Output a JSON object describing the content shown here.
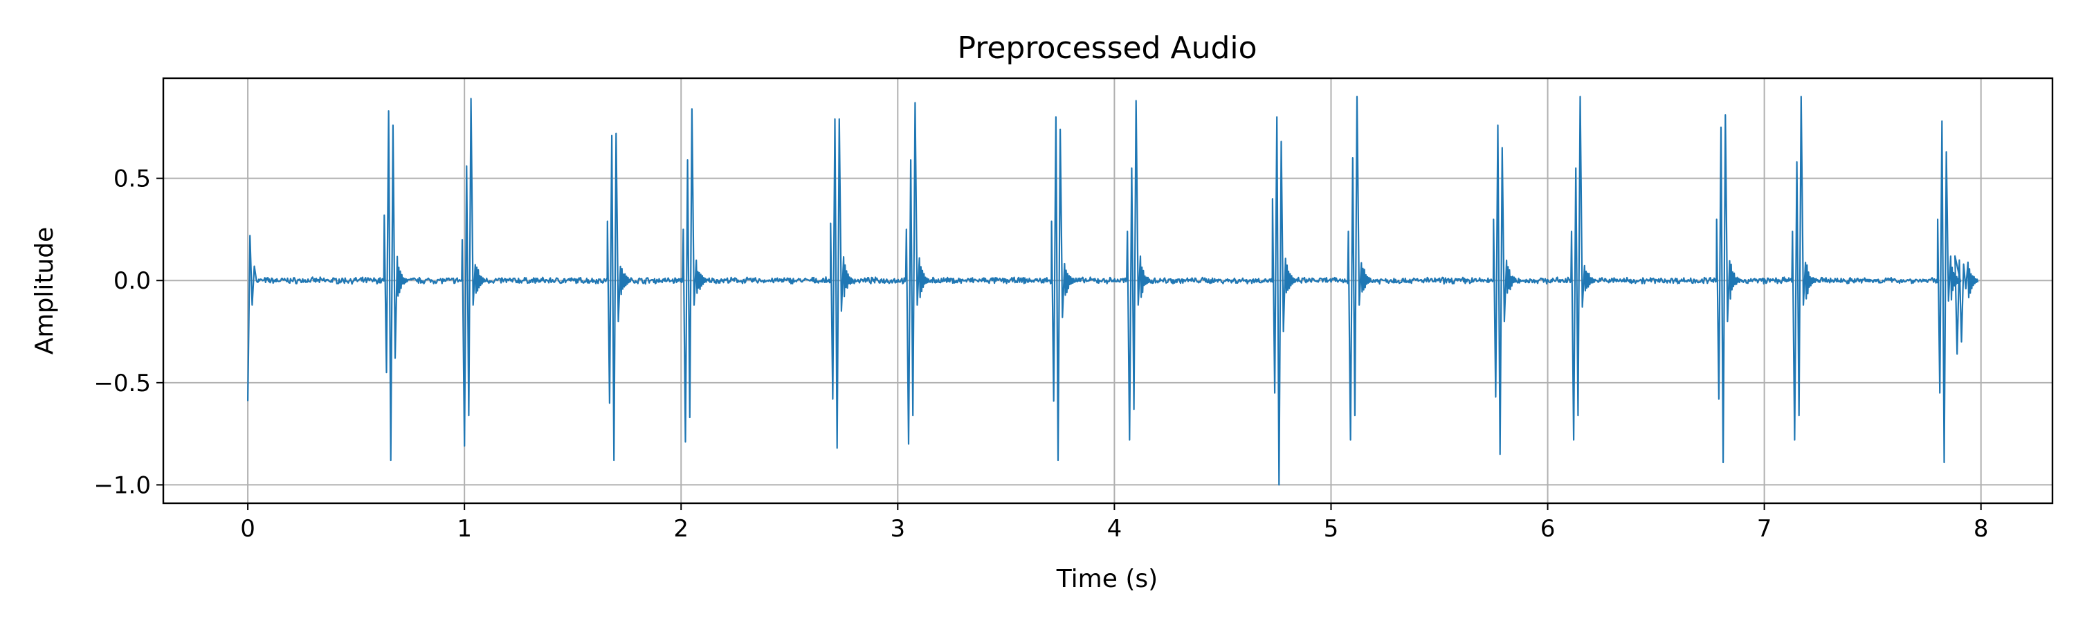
{
  "chart_data": {
    "type": "line",
    "title": "Preprocessed Audio",
    "xlabel": "Time (s)",
    "ylabel": "Amplitude",
    "xlim": [
      -0.39,
      8.33
    ],
    "ylim": [
      -1.09,
      0.99
    ],
    "grid": true,
    "xticks": [
      0,
      1,
      2,
      3,
      4,
      5,
      6,
      7,
      8
    ],
    "xtick_labels": [
      "0",
      "1",
      "2",
      "3",
      "4",
      "5",
      "6",
      "7",
      "8"
    ],
    "yticks": [
      0.5,
      0.0,
      -0.5,
      -1.0
    ],
    "ytick_labels": [
      "0.5",
      "0.0",
      "−0.5",
      "−1.0"
    ],
    "series": [
      {
        "color": "#1f77b4",
        "duration": 7.94,
        "noise_amplitude": 0.012,
        "x": [
          0.0,
          0.01,
          0.02,
          0.03,
          0.04
        ],
        "y": [
          -0.59,
          0.22,
          -0.12,
          0.07,
          0.0
        ],
        "events": [
          {
            "t": 0.63,
            "peaks": [
              0.32,
              -0.45,
              0.83,
              -0.88,
              0.76,
              -0.38
            ]
          },
          {
            "t": 0.99,
            "peaks": [
              0.2,
              -0.81,
              0.56,
              -0.66,
              0.89,
              -0.12
            ]
          },
          {
            "t": 1.66,
            "peaks": [
              0.29,
              -0.6,
              0.71,
              -0.88,
              0.72,
              -0.2
            ]
          },
          {
            "t": 2.01,
            "peaks": [
              0.25,
              -0.79,
              0.59,
              -0.67,
              0.84,
              -0.12
            ]
          },
          {
            "t": 2.69,
            "peaks": [
              0.28,
              -0.58,
              0.79,
              -0.82,
              0.79,
              -0.15
            ]
          },
          {
            "t": 3.04,
            "peaks": [
              0.25,
              -0.8,
              0.59,
              -0.66,
              0.87,
              -0.12
            ]
          },
          {
            "t": 3.71,
            "peaks": [
              0.29,
              -0.59,
              0.8,
              -0.88,
              0.74,
              -0.18
            ]
          },
          {
            "t": 4.06,
            "peaks": [
              0.24,
              -0.78,
              0.55,
              -0.63,
              0.88,
              -0.12
            ]
          },
          {
            "t": 4.73,
            "peaks": [
              0.4,
              -0.55,
              0.8,
              -1.0,
              0.68,
              -0.25
            ]
          },
          {
            "t": 5.08,
            "peaks": [
              0.24,
              -0.78,
              0.6,
              -0.66,
              0.9,
              -0.12
            ]
          },
          {
            "t": 5.75,
            "peaks": [
              0.3,
              -0.57,
              0.76,
              -0.85,
              0.65,
              -0.2
            ]
          },
          {
            "t": 6.11,
            "peaks": [
              0.24,
              -0.78,
              0.55,
              -0.66,
              0.9,
              -0.13
            ]
          },
          {
            "t": 6.78,
            "peaks": [
              0.3,
              -0.58,
              0.75,
              -0.89,
              0.81,
              -0.2
            ]
          },
          {
            "t": 7.13,
            "peaks": [
              0.24,
              -0.78,
              0.58,
              -0.66,
              0.9,
              -0.12
            ]
          },
          {
            "t": 7.8,
            "peaks": [
              0.3,
              -0.55,
              0.78,
              -0.89,
              0.63,
              -0.1
            ]
          }
        ],
        "tail": {
          "t": 7.88,
          "peaks": [
            0.12,
            -0.36,
            0.1,
            -0.3,
            0.08,
            -0.04
          ]
        }
      }
    ]
  }
}
